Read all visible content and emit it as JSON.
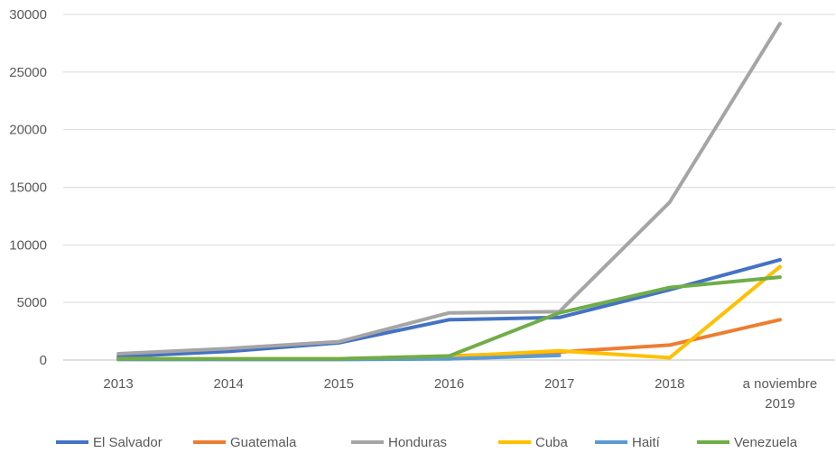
{
  "chart_data": {
    "type": "line",
    "categories": [
      "2013",
      "2014",
      "2015",
      "2016",
      "2017",
      "2018",
      "a noviembre 2019"
    ],
    "category_lines": [
      [
        "2013"
      ],
      [
        "2014"
      ],
      [
        "2015"
      ],
      [
        "2016"
      ],
      [
        "2017"
      ],
      [
        "2018"
      ],
      [
        "a noviembre",
        "2019"
      ]
    ],
    "ylim": [
      0,
      30000
    ],
    "yticks": [
      "0",
      "5000",
      "10000",
      "15000",
      "20000",
      "25000",
      "30000"
    ],
    "grid": true,
    "legend_position": "bottom",
    "series": [
      {
        "name": "El Salvador",
        "color": "#4472C4",
        "values": [
          300,
          750,
          1500,
          3500,
          3700,
          6100,
          8700
        ]
      },
      {
        "name": "Guatemala",
        "color": "#ED7D31",
        "values": [
          100,
          100,
          100,
          350,
          700,
          1300,
          3500
        ]
      },
      {
        "name": "Honduras",
        "color": "#A5A5A5",
        "values": [
          550,
          1000,
          1600,
          4100,
          4200,
          13700,
          29200
        ]
      },
      {
        "name": "Cuba",
        "color": "#FFC000",
        "values": [
          100,
          100,
          100,
          300,
          800,
          200,
          8100
        ]
      },
      {
        "name": "Haití",
        "color": "#5B9BD5",
        "values": [
          50,
          50,
          50,
          100,
          400,
          null,
          null
        ]
      },
      {
        "name": "Venezuela",
        "color": "#70AD47",
        "values": [
          100,
          100,
          100,
          350,
          4100,
          6300,
          7200
        ]
      }
    ]
  }
}
